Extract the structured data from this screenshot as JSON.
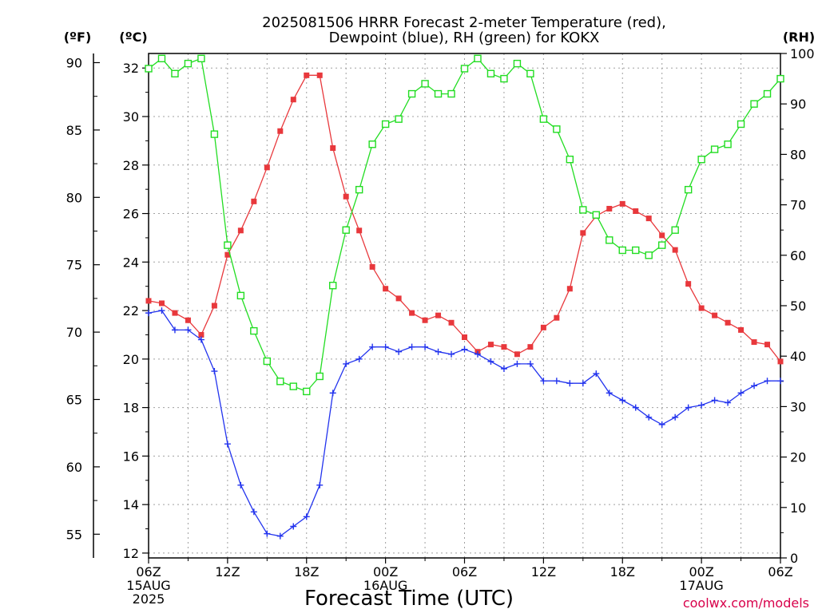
{
  "chart_data": {
    "type": "line",
    "title": [
      "2025081506 HRRR Forecast 2-meter Temperature (red),",
      "Dewpoint (blue), RH (green) for KOKX"
    ],
    "xlabel": "Forecast Time (UTC)",
    "credit": "coolwx.com/models",
    "x_ticks": [
      {
        "hour": 0,
        "lines": [
          "06Z",
          "15AUG",
          "2025"
        ]
      },
      {
        "hour": 6,
        "lines": [
          "12Z"
        ]
      },
      {
        "hour": 12,
        "lines": [
          "18Z"
        ]
      },
      {
        "hour": 18,
        "lines": [
          "00Z",
          "16AUG"
        ]
      },
      {
        "hour": 24,
        "lines": [
          "06Z"
        ]
      },
      {
        "hour": 30,
        "lines": [
          "12Z"
        ]
      },
      {
        "hour": 36,
        "lines": [
          "18Z"
        ]
      },
      {
        "hour": 42,
        "lines": [
          "00Z",
          "17AUG"
        ]
      },
      {
        "hour": 48,
        "lines": [
          "06Z"
        ]
      }
    ],
    "x_range": [
      0,
      48
    ],
    "celsius_axis": {
      "label": "(ºC)",
      "range": [
        11.8,
        32.6
      ],
      "ticks": [
        12,
        14,
        16,
        18,
        20,
        22,
        24,
        26,
        28,
        30,
        32
      ]
    },
    "fahrenheit_axis": {
      "label": "(ºF)",
      "ticks": [
        55,
        60,
        65,
        70,
        75,
        80,
        85,
        90
      ]
    },
    "rh_axis": {
      "label": "(RH)",
      "range": [
        0,
        100
      ],
      "ticks": [
        0,
        10,
        20,
        30,
        40,
        50,
        60,
        70,
        80,
        90,
        100
      ]
    },
    "grid": true,
    "series": [
      {
        "name": "Temperature",
        "units": "C",
        "color": "#e8383c",
        "marker": "filled-square",
        "values": [
          22.4,
          22.3,
          21.9,
          21.6,
          21.0,
          22.2,
          24.3,
          25.3,
          26.5,
          27.9,
          29.4,
          30.7,
          31.7,
          31.7,
          28.7,
          26.7,
          25.3,
          23.8,
          22.9,
          22.5,
          21.9,
          21.6,
          21.8,
          21.5,
          20.9,
          20.3,
          20.6,
          20.5,
          20.2,
          20.5,
          21.3,
          21.7,
          22.9,
          25.2,
          25.9,
          26.2,
          26.4,
          26.1,
          25.8,
          25.1,
          24.5,
          23.1,
          22.1,
          21.8,
          21.5,
          21.2,
          20.7,
          20.6,
          19.9
        ]
      },
      {
        "name": "Dewpoint",
        "units": "C",
        "color": "#2233ee",
        "marker": "plus",
        "values": [
          21.9,
          22.0,
          21.2,
          21.2,
          20.8,
          19.5,
          16.5,
          14.8,
          13.7,
          12.8,
          12.7,
          13.1,
          13.5,
          14.8,
          18.6,
          19.8,
          20.0,
          20.5,
          20.5,
          20.3,
          20.5,
          20.5,
          20.3,
          20.2,
          20.4,
          20.2,
          19.9,
          19.6,
          19.8,
          19.8,
          19.1,
          19.1,
          19.0,
          19.0,
          19.4,
          18.6,
          18.3,
          18.0,
          17.6,
          17.3,
          17.6,
          18.0,
          18.1,
          18.3,
          18.2,
          18.6,
          18.9,
          19.1,
          19.1
        ]
      },
      {
        "name": "RH",
        "units": "%",
        "color": "#22dd22",
        "marker": "open-square",
        "values": [
          97,
          99,
          96,
          98,
          99,
          84,
          62,
          52,
          45,
          39,
          35,
          34,
          33,
          36,
          54,
          65,
          73,
          82,
          86,
          87,
          92,
          94,
          92,
          92,
          97,
          99,
          96,
          95,
          98,
          96,
          87,
          85,
          79,
          69,
          68,
          63,
          61,
          61,
          60,
          62,
          65,
          73,
          79,
          81,
          82,
          86,
          90,
          92,
          95
        ]
      }
    ]
  }
}
